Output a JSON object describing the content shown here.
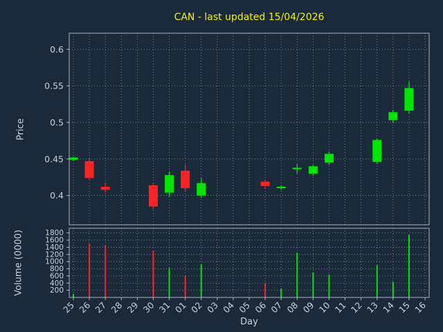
{
  "title": "CAN - last updated 15/04/2026",
  "axes": {
    "x_label": "Day",
    "price_label": "Price",
    "volume_label": "Volume (0000)"
  },
  "colors": {
    "background": "#1b2a3a",
    "title": "#f5f500",
    "tick_text": "#c9d2da",
    "up": "#00e600",
    "down": "#ff2222",
    "grid": "#9fb0c0"
  },
  "chart_data": {
    "type": "candlestick",
    "title": "CAN - last updated 15/04/2026",
    "xlabel": "Day",
    "ylabel_top": "Price",
    "ylabel_bottom": "Volume (0000)",
    "grid": true,
    "x": [
      "25",
      "26",
      "27",
      "28",
      "29",
      "30",
      "31",
      "01",
      "02",
      "03",
      "04",
      "05",
      "06",
      "07",
      "08",
      "09",
      "10",
      "11",
      "12",
      "13",
      "14",
      "15",
      "16"
    ],
    "price_ticks": [
      0.4,
      0.45,
      0.5,
      0.55,
      0.6
    ],
    "price_axis_range": [
      0.36,
      0.622
    ],
    "volume_ticks": [
      200,
      400,
      600,
      800,
      1000,
      1200,
      1400,
      1600,
      1800
    ],
    "volume_axis_range": [
      0,
      1930
    ],
    "no_data_days": [
      "28",
      "29",
      "03",
      "04",
      "05",
      "11",
      "12",
      "16"
    ],
    "series": [
      {
        "day": "25",
        "open": 0.449,
        "high": 0.453,
        "low": 0.447,
        "close": 0.452,
        "volume": 100
      },
      {
        "day": "26",
        "open": 0.447,
        "high": 0.451,
        "low": 0.421,
        "close": 0.424,
        "volume": 1500
      },
      {
        "day": "27",
        "open": 0.412,
        "high": 0.417,
        "low": 0.404,
        "close": 0.408,
        "volume": 1450
      },
      {
        "day": "30",
        "open": 0.414,
        "high": 0.417,
        "low": 0.381,
        "close": 0.385,
        "volume": 1300
      },
      {
        "day": "31",
        "open": 0.404,
        "high": 0.433,
        "low": 0.398,
        "close": 0.428,
        "volume": 820
      },
      {
        "day": "01",
        "open": 0.434,
        "high": 0.442,
        "low": 0.405,
        "close": 0.41,
        "volume": 600
      },
      {
        "day": "02",
        "open": 0.4,
        "high": 0.424,
        "low": 0.397,
        "close": 0.417,
        "volume": 930
      },
      {
        "day": "06",
        "open": 0.419,
        "high": 0.422,
        "low": 0.409,
        "close": 0.413,
        "volume": 400
      },
      {
        "day": "07",
        "open": 0.41,
        "high": 0.414,
        "low": 0.408,
        "close": 0.412,
        "volume": 250
      },
      {
        "day": "08",
        "open": 0.436,
        "high": 0.443,
        "low": 0.43,
        "close": 0.438,
        "volume": 1250
      },
      {
        "day": "09",
        "open": 0.43,
        "high": 0.442,
        "low": 0.427,
        "close": 0.44,
        "volume": 700
      },
      {
        "day": "10",
        "open": 0.445,
        "high": 0.46,
        "low": 0.442,
        "close": 0.457,
        "volume": 640
      },
      {
        "day": "13",
        "open": 0.446,
        "high": 0.478,
        "low": 0.443,
        "close": 0.476,
        "volume": 900
      },
      {
        "day": "14",
        "open": 0.503,
        "high": 0.517,
        "low": 0.499,
        "close": 0.514,
        "volume": 430
      },
      {
        "day": "15",
        "open": 0.516,
        "high": 0.556,
        "low": 0.512,
        "close": 0.547,
        "volume": 1750
      }
    ]
  }
}
